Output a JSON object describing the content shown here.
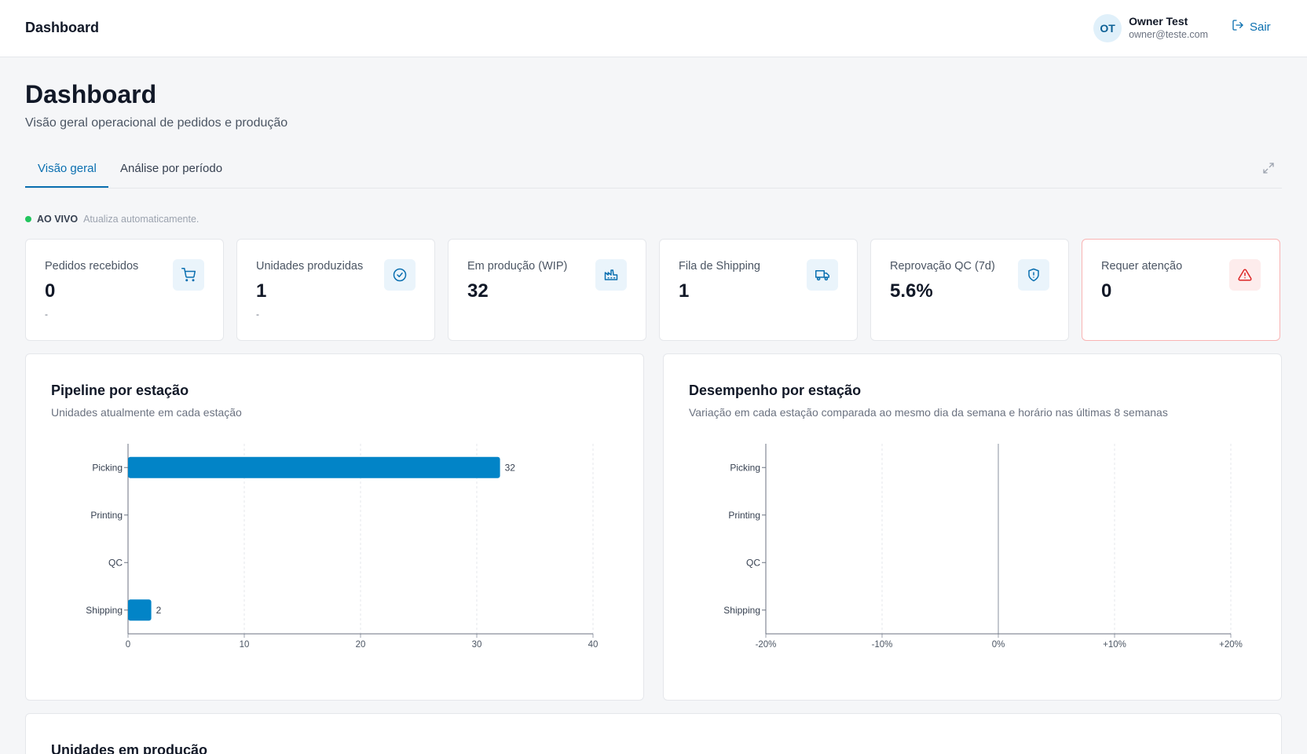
{
  "header": {
    "app_title": "Dashboard",
    "user": {
      "initials": "OT",
      "name": "Owner Test",
      "email": "owner@teste.com"
    },
    "logout_label": "Sair"
  },
  "page": {
    "title": "Dashboard",
    "subtitle": "Visão geral operacional de pedidos e produção"
  },
  "tabs": [
    {
      "label": "Visão geral",
      "active": true
    },
    {
      "label": "Análise por período",
      "active": false
    }
  ],
  "live": {
    "label": "AO VIVO",
    "note": "Atualiza automaticamente."
  },
  "kpis": [
    {
      "label": "Pedidos recebidos",
      "value": "0",
      "sub": "-",
      "icon": "cart-icon"
    },
    {
      "label": "Unidades produzidas",
      "value": "1",
      "sub": "-",
      "icon": "check-circle-icon"
    },
    {
      "label": "Em produção (WIP)",
      "value": "32",
      "sub": "",
      "icon": "factory-icon"
    },
    {
      "label": "Fila de Shipping",
      "value": "1",
      "sub": "",
      "icon": "truck-icon"
    },
    {
      "label": "Reprovação QC (7d)",
      "value": "5.6%",
      "sub": "",
      "icon": "shield-alert-icon"
    },
    {
      "label": "Requer atenção",
      "value": "0",
      "sub": "",
      "icon": "warning-triangle-icon"
    }
  ],
  "colors": {
    "accent": "#0a6fb0",
    "bar": "#0284c7",
    "alert": "#dc2626",
    "live": "#22c55e"
  },
  "panels": {
    "pipeline": {
      "title": "Pipeline por estação",
      "subtitle": "Unidades atualmente em cada estação"
    },
    "performance": {
      "title": "Desempenho por estação",
      "subtitle": "Variação em cada estação comparada ao mesmo dia da semana e horário nas últimas 8 semanas"
    },
    "units": {
      "title": "Unidades em produção"
    }
  },
  "chart_data": [
    {
      "type": "bar",
      "orientation": "horizontal",
      "categories": [
        "Picking",
        "Printing",
        "QC",
        "Shipping"
      ],
      "values": [
        32,
        0,
        0,
        2
      ],
      "data_labels": [
        "32",
        "",
        "",
        "2"
      ],
      "xlim": [
        0,
        40
      ],
      "xticks": [
        "0",
        "10",
        "20",
        "30",
        "40"
      ],
      "grid": "vertical dashed"
    },
    {
      "type": "bar",
      "orientation": "horizontal",
      "categories": [
        "Picking",
        "Printing",
        "QC",
        "Shipping"
      ],
      "values": [
        null,
        null,
        null,
        null
      ],
      "xlim": [
        -20,
        20
      ],
      "xticks": [
        "-20%",
        "-10%",
        "0%",
        "+10%",
        "+20%"
      ],
      "grid": "vertical dashed"
    }
  ]
}
